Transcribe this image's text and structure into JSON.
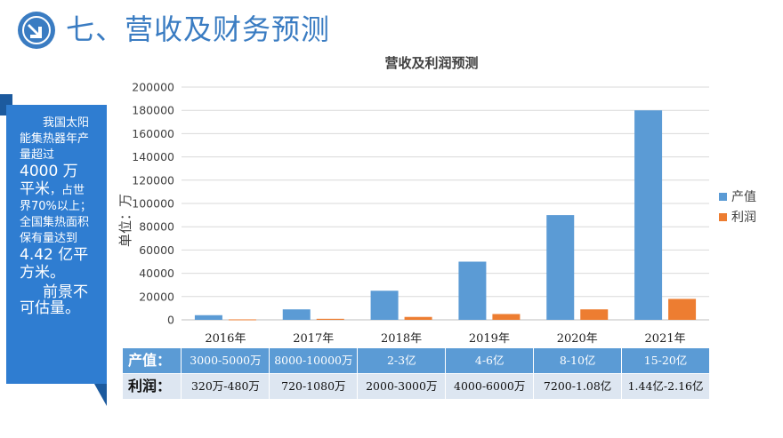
{
  "slide": {
    "title": "七、营收及财务预测"
  },
  "side": {
    "para1": "我国太阳能集热器年产量超过",
    "para1_big": "4000 万平米",
    "para1_rest": "，占世界70%以上；全国集热面积保有量达到",
    "para1_big2": "4.42 亿平方米。",
    "para2": "前景不可估量。"
  },
  "chart_data": {
    "type": "bar",
    "title": "营收及利润预测",
    "ylabel": "单位：万",
    "xlabel": "",
    "categories": [
      "2016年",
      "2017年",
      "2018年",
      "2019年",
      "2020年",
      "2021年"
    ],
    "series": [
      {
        "name": "产值",
        "color": "#5b9bd5",
        "values": [
          4000,
          9000,
          25000,
          50000,
          90000,
          180000
        ]
      },
      {
        "name": "利润",
        "color": "#ed7d31",
        "values": [
          400,
          900,
          2500,
          5000,
          9000,
          18000
        ]
      }
    ],
    "ylim": [
      0,
      200000
    ],
    "yticks": [
      0,
      20000,
      40000,
      60000,
      80000,
      100000,
      120000,
      140000,
      160000,
      180000,
      200000
    ],
    "grid": true,
    "legend_position": "right"
  },
  "table": {
    "rows": [
      {
        "label": "产值：",
        "cells": [
          "3000-5000万",
          "8000-10000万",
          "2-3亿",
          "4-6亿",
          "8-10亿",
          "15-20亿"
        ]
      },
      {
        "label": "利润：",
        "cells": [
          "320万-480万",
          "720-1080万",
          "2000-3000万",
          "4000-6000万",
          "7200-1.08亿",
          "1.44亿-2.16亿"
        ]
      }
    ]
  }
}
